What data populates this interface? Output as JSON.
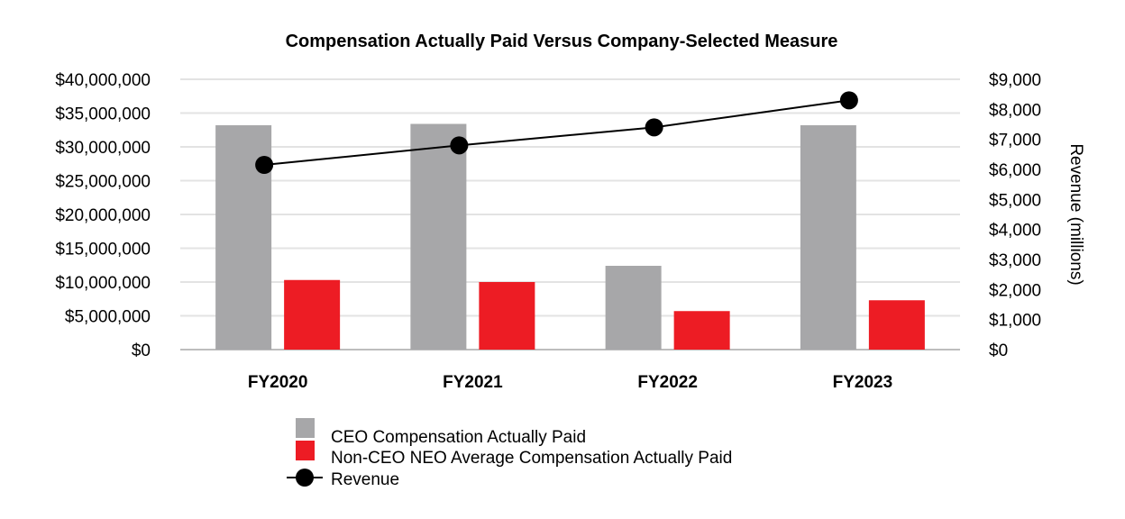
{
  "chart_data": {
    "type": "bar",
    "title": "Compensation Actually Paid Versus Company-Selected Measure",
    "categories": [
      "FY2020",
      "FY2021",
      "FY2022",
      "FY2023"
    ],
    "xlabel": "",
    "ylabel": "",
    "ylim": [
      0,
      40000000
    ],
    "y_ticks": [
      0,
      5000000,
      10000000,
      15000000,
      20000000,
      25000000,
      30000000,
      35000000,
      40000000
    ],
    "y_tick_labels": [
      "$0",
      "$5,000,000",
      "$10,000,000",
      "$15,000,000",
      "$20,000,000",
      "$25,000,000",
      "$30,000,000",
      "$35,000,000",
      "$40,000,000"
    ],
    "y2label": "Revenue (millions)",
    "y2lim": [
      0,
      9000
    ],
    "y2_ticks": [
      0,
      1000,
      2000,
      3000,
      4000,
      5000,
      6000,
      7000,
      8000,
      9000
    ],
    "y2_tick_labels": [
      "$0",
      "$1,000",
      "$2,000",
      "$3,000",
      "$4,000",
      "$5,000",
      "$6,000",
      "$7,000",
      "$8,000",
      "$9,000"
    ],
    "grid": true,
    "legend_position": "bottom-center",
    "series": [
      {
        "name": "CEO Compensation Actually Paid",
        "type": "bar",
        "axis": "left",
        "color": "#a7a7a9",
        "values": [
          33200000,
          33400000,
          12400000,
          33200000
        ]
      },
      {
        "name": "Non-CEO NEO Average Compensation Actually Paid",
        "type": "bar",
        "axis": "left",
        "color": "#ed1c24",
        "values": [
          10300000,
          10000000,
          5700000,
          7300000
        ]
      },
      {
        "name": "Revenue",
        "type": "line",
        "axis": "right",
        "color": "#000000",
        "values": [
          6150,
          6800,
          7400,
          8300
        ]
      }
    ]
  }
}
